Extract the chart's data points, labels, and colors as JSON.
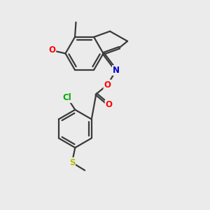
{
  "bg_color": "#ebebeb",
  "bond_color": "#3a3a3a",
  "bond_width": 1.6,
  "atom_colors": {
    "O": "#ff0000",
    "N": "#0000cc",
    "Cl": "#00aa00",
    "S": "#bbbb00",
    "C": "#3a3a3a"
  },
  "font_size": 8.5
}
